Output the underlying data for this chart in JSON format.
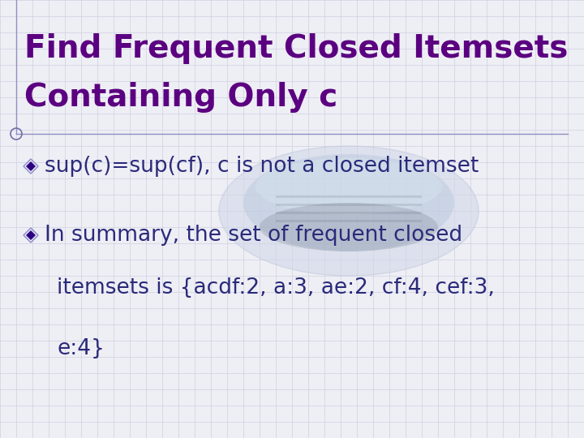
{
  "title_line1": "Find Frequent Closed Itemsets",
  "title_line2": "Containing Only c",
  "title_color": "#5b0080",
  "title_fontsize": 28,
  "bullet1": "sup(c)=sup(cf), c is not a closed itemset",
  "bullet2": "In summary, the set of frequent closed",
  "continuation1": "itemsets is {acdf:2, a:3, ae:2, cf:4, cef:3,",
  "continuation2": "e:4}",
  "text_color": "#2a2a7a",
  "text_fontsize": 19,
  "bg_color": "#eeeef5",
  "grid_color": "#d0d0e0",
  "diamond_color": "#2a0080",
  "diamond_outline": "#8888cc",
  "border_color": "#9090c0",
  "circle_color": "#7070aa"
}
